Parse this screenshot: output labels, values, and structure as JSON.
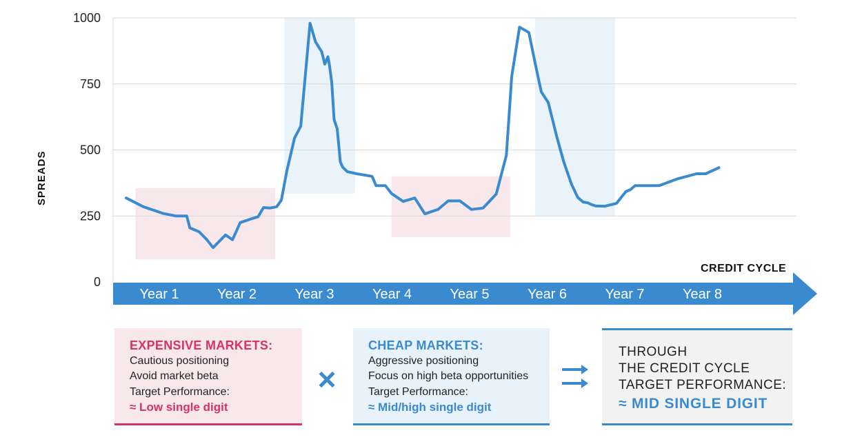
{
  "chart_data": {
    "type": "line",
    "ylabel": "SPREADS",
    "xlabel": "CREDIT CYCLE",
    "ylim": [
      0,
      1000
    ],
    "yticks": [
      "0",
      "250",
      "500",
      "750",
      "1000"
    ],
    "categories": [
      "Year 1",
      "Year 2",
      "Year 3",
      "Year 4",
      "Year 5",
      "Year 6",
      "Year 7",
      "Year 8"
    ],
    "series": [
      {
        "name": "Spreads",
        "x": [
          0.08,
          0.3,
          0.55,
          0.72,
          0.86,
          0.9,
          1.02,
          1.12,
          1.2,
          1.36,
          1.45,
          1.55,
          1.7,
          1.78,
          1.85,
          1.93,
          2.02,
          2.08,
          2.15,
          2.25,
          2.33,
          2.45,
          2.52,
          2.55,
          2.6,
          2.64,
          2.68,
          2.7,
          2.73,
          2.76,
          2.8,
          2.84,
          2.87,
          2.93,
          3.05,
          3.25,
          3.3,
          3.42,
          3.5,
          3.65,
          3.8,
          3.93,
          4.1,
          4.23,
          4.38,
          4.53,
          4.68,
          4.85,
          4.98,
          5.05,
          5.15,
          5.27,
          5.35,
          5.43,
          5.52,
          5.63,
          5.72,
          5.82,
          5.9,
          5.97,
          6.03,
          6.07,
          6.13,
          6.25,
          6.4,
          6.52,
          6.58,
          6.64,
          6.75,
          6.95,
          7.18,
          7.43,
          7.55,
          7.72
        ],
        "values": [
          318,
          285,
          260,
          250,
          250,
          205,
          190,
          160,
          130,
          178,
          160,
          225,
          240,
          247,
          282,
          280,
          285,
          310,
          420,
          545,
          590,
          980,
          910,
          895,
          872,
          825,
          853,
          820,
          755,
          615,
          580,
          455,
          435,
          418,
          410,
          400,
          365,
          365,
          335,
          305,
          318,
          258,
          275,
          307,
          307,
          275,
          280,
          333,
          480,
          780,
          965,
          945,
          830,
          720,
          680,
          550,
          455,
          370,
          320,
          303,
          300,
          294,
          288,
          287,
          298,
          342,
          350,
          365,
          365,
          365,
          390,
          410,
          410,
          433
        ]
      }
    ],
    "shaded_regions": [
      {
        "color": "pink",
        "x0": 0.2,
        "x1": 2.0,
        "y0": 85,
        "y1": 355
      },
      {
        "color": "blue",
        "x0": 2.12,
        "x1": 3.03,
        "y0": 335,
        "y1": 1000
      },
      {
        "color": "pink",
        "x0": 3.5,
        "x1": 5.03,
        "y0": 170,
        "y1": 400
      },
      {
        "color": "blue",
        "x0": 5.35,
        "x1": 6.38,
        "y0": 250,
        "y1": 1000
      }
    ]
  },
  "boxes": {
    "expensive": {
      "title": "EXPENSIVE MARKETS:",
      "line1": "Cautious positioning",
      "line2": "Avoid market beta",
      "line3": "Target Performance:",
      "value": "≈ Low single digit"
    },
    "cheap": {
      "title": "CHEAP MARKETS:",
      "line1": "Aggressive positioning",
      "line2": "Focus on high beta opportunities",
      "line3": "Target Performance:",
      "value": "≈ Mid/high single digit"
    },
    "cycle": {
      "line1": "THROUGH",
      "line2": "THE CREDIT CYCLE",
      "line3": "TARGET PERFORMANCE:",
      "value": "≈ MID SINGLE DIGIT"
    }
  },
  "symbols": {
    "times": "×"
  },
  "colors": {
    "line": "#3a8ad0",
    "arrow": "#3a8ad0",
    "pink_shade": "#f8e8ec",
    "blue_shade": "#eaf2fa",
    "expensive_accent": "#d63366",
    "cheap_accent": "#3a8ad0"
  }
}
